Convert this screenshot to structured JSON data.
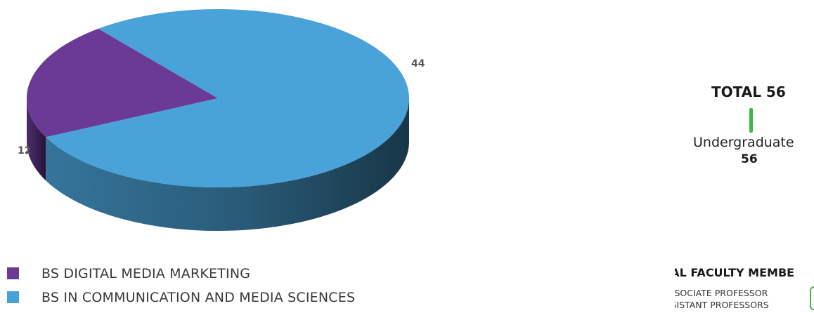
{
  "chart_data": {
    "type": "pie",
    "style": "3d",
    "title": "",
    "categories": [
      "BS DIGITAL MEDIA MARKETING",
      "BS IN COMMUNICATION AND MEDIA SCIENCES"
    ],
    "values": [
      12,
      44
    ],
    "data_labels": [
      "12",
      "44"
    ],
    "colors": [
      "#6a3a96",
      "#4aa3d8"
    ],
    "legend_position": "bottom-left"
  },
  "summary": {
    "total_label": "TOTAL 56",
    "level_label": "Undergraduate",
    "level_count": "56"
  },
  "faculty": {
    "title": "TOTAL FACULTY MEMBE",
    "rows": [
      "ASSOCIATE PROFESSOR",
      "ASSISTANT PROFESSORS"
    ]
  }
}
